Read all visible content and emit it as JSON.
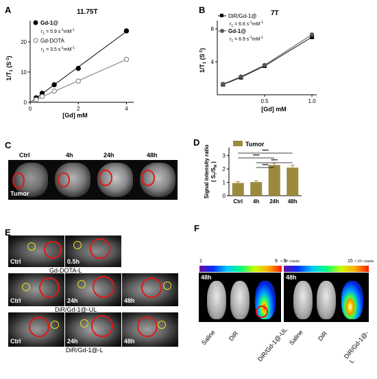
{
  "panel_labels": {
    "A": "A",
    "B": "B",
    "C": "C",
    "D": "D",
    "E": "E",
    "F": "F"
  },
  "chart_data": [
    {
      "type": "line",
      "panel": "A",
      "title": "11.75T",
      "xlabel": "[Gd] mM",
      "ylabel": "1/T",
      "ylabel_sub": "1",
      "ylabel_unit": "(S",
      "ylabel_sup": "-1",
      "xlim": [
        0,
        4.3
      ],
      "ylim": [
        0,
        27
      ],
      "xticks": [
        0,
        2,
        4
      ],
      "yticks": [
        0,
        10,
        20
      ],
      "series": [
        {
          "name": "Gd-1@",
          "annotation_r": "r",
          "annotation_rest": " = 5.9 s",
          "color": "#000000",
          "marker": "filled",
          "x": [
            0.25,
            0.5,
            1,
            2,
            4
          ],
          "y": [
            1.5,
            3.0,
            5.8,
            11.2,
            23.6
          ]
        },
        {
          "name": "Gd-DOTA",
          "annotation_r": "r",
          "annotation_rest": " = 3.5 s",
          "color": "#777777",
          "marker": "open",
          "x": [
            0.25,
            0.5,
            1,
            2,
            4
          ],
          "y": [
            0.9,
            1.9,
            3.7,
            7.0,
            14.2
          ]
        }
      ]
    },
    {
      "type": "line",
      "panel": "B",
      "title": "7T",
      "xlabel": "[Gd] mM",
      "ylabel": "1/T",
      "ylabel_sub": "1",
      "ylabel_unit": "(S",
      "ylabel_sup": "-1",
      "xlim": [
        0,
        1.05
      ],
      "ylim": [
        0,
        9
      ],
      "xticks": [
        0.5,
        1.0
      ],
      "yticks": [
        4,
        8
      ],
      "series": [
        {
          "name": "DiR/Gd-1@",
          "annotation_r": "r",
          "annotation_rest": " = 6.6 s",
          "color": "#000000",
          "marker": "square",
          "x": [
            0.06,
            0.25,
            0.5,
            1.0
          ],
          "y": [
            1.25,
            2.1,
            3.5,
            7.0
          ]
        },
        {
          "name": "Gd-1@",
          "annotation_r": "r",
          "annotation_rest": " = 6.9 s",
          "color": "#555555",
          "marker": "filled",
          "x": [
            0.06,
            0.25,
            0.5,
            1.0
          ],
          "y": [
            1.3,
            2.2,
            3.6,
            7.3
          ]
        }
      ]
    },
    {
      "type": "bar",
      "panel": "D",
      "ylabel": "Signal intensity ratio",
      "ylabel2": "( S",
      "categories": [
        "Ctrl",
        "4h",
        "24h",
        "48h"
      ],
      "values": [
        0.95,
        1.02,
        2.3,
        2.1
      ],
      "errors": [
        0.1,
        0.1,
        0.15,
        0.18
      ],
      "ylim": [
        0,
        3.6
      ],
      "yticks": [
        0,
        1,
        2,
        3
      ],
      "legend": "Tumor",
      "bar_color": "#9b8a3c",
      "significance": [
        "****",
        "****",
        "****",
        "****"
      ]
    }
  ],
  "panel_C": {
    "labels": [
      "Ctrl",
      "4h",
      "24h",
      "48h"
    ],
    "tumor_label": "Tumor"
  },
  "panel_E": {
    "row1_labels": [
      "Ctrl",
      "0.5h"
    ],
    "row1_caption": "Gd-DOTA-L",
    "row2_labels": [
      "Ctrl",
      "24h",
      "48h"
    ],
    "row2_caption": "DiR/Gd-1@-UL",
    "row3_labels": [
      "Ctrl",
      "24h",
      "48h"
    ],
    "row3_caption": "DiR/Gd-1@-L"
  },
  "panel_F": {
    "left": {
      "time": "48h",
      "scale_min": "1",
      "scale_max": "9",
      "scale_unit": "× 10⁵ counts"
    },
    "right": {
      "time": "48h",
      "scale_min": "5",
      "scale_max": "15",
      "scale_unit": "× 10⁵ counts"
    },
    "left_labels": [
      "Saline",
      "DiR",
      "DiR/Gd-1@-UL"
    ],
    "right_labels": [
      "Saline",
      "DiR",
      "DiR/Gd-1@-L"
    ]
  }
}
